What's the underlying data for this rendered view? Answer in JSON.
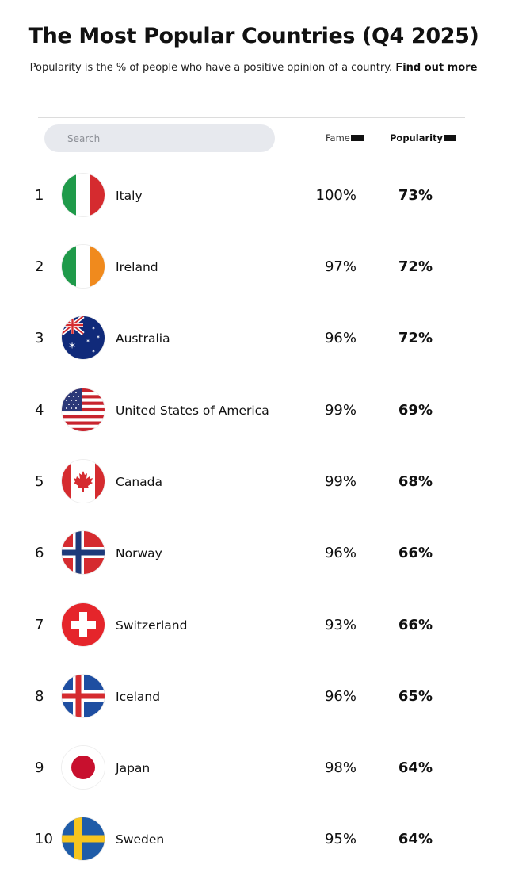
{
  "header": {
    "title": "The Most Popular Countries (Q4 2025)",
    "subtitle": "Popularity is the % of people who have a positive opinion of a country.",
    "link_label": "Find out more"
  },
  "search": {
    "placeholder": "Search",
    "value": ""
  },
  "columns": {
    "fame": "Fame",
    "popularity": "Popularity"
  },
  "rows": [
    {
      "rank": "1",
      "country": "Italy",
      "flag": "italy-flag-icon",
      "fame": "100%",
      "popularity": "73%"
    },
    {
      "rank": "2",
      "country": "Ireland",
      "flag": "ireland-flag-icon",
      "fame": "97%",
      "popularity": "72%"
    },
    {
      "rank": "3",
      "country": "Australia",
      "flag": "australia-flag-icon",
      "fame": "96%",
      "popularity": "72%"
    },
    {
      "rank": "4",
      "country": "United States of America",
      "flag": "usa-flag-icon",
      "fame": "99%",
      "popularity": "69%"
    },
    {
      "rank": "5",
      "country": "Canada",
      "flag": "canada-flag-icon",
      "fame": "99%",
      "popularity": "68%"
    },
    {
      "rank": "6",
      "country": "Norway",
      "flag": "norway-flag-icon",
      "fame": "96%",
      "popularity": "66%"
    },
    {
      "rank": "7",
      "country": "Switzerland",
      "flag": "switzerland-flag-icon",
      "fame": "93%",
      "popularity": "66%"
    },
    {
      "rank": "8",
      "country": "Iceland",
      "flag": "iceland-flag-icon",
      "fame": "96%",
      "popularity": "65%"
    },
    {
      "rank": "9",
      "country": "Japan",
      "flag": "japan-flag-icon",
      "fame": "98%",
      "popularity": "64%"
    },
    {
      "rank": "10",
      "country": "Sweden",
      "flag": "sweden-flag-icon",
      "fame": "95%",
      "popularity": "64%"
    }
  ],
  "colors": {
    "text": "#111111",
    "search_bg": "#e7e9ee",
    "divider": "#dcdcdc"
  }
}
